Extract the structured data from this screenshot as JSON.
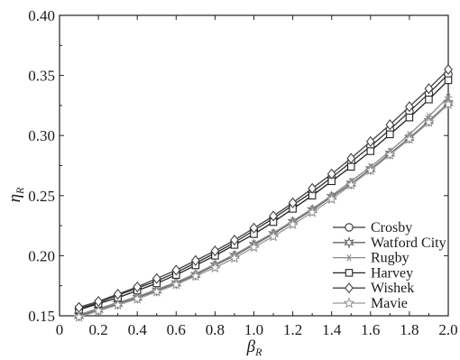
{
  "chart_data": {
    "type": "line",
    "xlabel": "β",
    "xlabel_sub": "R",
    "ylabel": "η",
    "ylabel_sub": "R",
    "xlim": [
      0,
      2.0
    ],
    "ylim": [
      0.15,
      0.4
    ],
    "x_ticks": [
      "0",
      "0.2",
      "0.4",
      "0.6",
      "0.8",
      "1.0",
      "1.2",
      "1.4",
      "1.6",
      "1.8",
      "2.0"
    ],
    "y_ticks": [
      "0.15",
      "0.20",
      "0.25",
      "0.30",
      "0.35",
      "0.40"
    ],
    "grid": false,
    "legend_position": "lower-right",
    "x": [
      0.1,
      0.2,
      0.3,
      0.4,
      0.5,
      0.6,
      0.7,
      0.8,
      0.9,
      1.0,
      1.1,
      1.2,
      1.3,
      1.4,
      1.5,
      1.6,
      1.7,
      1.8,
      1.9,
      2.0
    ],
    "series": [
      {
        "name": "Crosby",
        "marker": "circle",
        "color": "#333333",
        "values": [
          0.156,
          0.161,
          0.167,
          0.173,
          0.179,
          0.186,
          0.194,
          0.202,
          0.211,
          0.221,
          0.231,
          0.242,
          0.253,
          0.265,
          0.278,
          0.291,
          0.305,
          0.32,
          0.335,
          0.351
        ]
      },
      {
        "name": "Watford City",
        "marker": "star6",
        "color": "#666666",
        "values": [
          0.15,
          0.155,
          0.16,
          0.165,
          0.171,
          0.177,
          0.184,
          0.192,
          0.2,
          0.209,
          0.218,
          0.228,
          0.238,
          0.249,
          0.26,
          0.272,
          0.285,
          0.298,
          0.312,
          0.327
        ]
      },
      {
        "name": "Rugby",
        "marker": "asterisk",
        "color": "#8a8a8a",
        "values": [
          0.151,
          0.156,
          0.161,
          0.166,
          0.172,
          0.178,
          0.185,
          0.193,
          0.201,
          0.21,
          0.219,
          0.229,
          0.239,
          0.25,
          0.262,
          0.274,
          0.287,
          0.301,
          0.316,
          0.332
        ]
      },
      {
        "name": "Harvey",
        "marker": "square",
        "color": "#222222",
        "values": [
          0.155,
          0.16,
          0.165,
          0.171,
          0.177,
          0.184,
          0.192,
          0.2,
          0.209,
          0.218,
          0.228,
          0.239,
          0.25,
          0.262,
          0.274,
          0.287,
          0.301,
          0.315,
          0.33,
          0.346
        ]
      },
      {
        "name": "Wishek",
        "marker": "diamond",
        "color": "#444444",
        "values": [
          0.157,
          0.162,
          0.168,
          0.174,
          0.181,
          0.188,
          0.196,
          0.204,
          0.213,
          0.223,
          0.233,
          0.244,
          0.256,
          0.268,
          0.281,
          0.295,
          0.309,
          0.324,
          0.339,
          0.355
        ]
      },
      {
        "name": "Mavie",
        "marker": "star5",
        "color": "#999999",
        "values": [
          0.149,
          0.154,
          0.159,
          0.164,
          0.17,
          0.176,
          0.183,
          0.19,
          0.198,
          0.207,
          0.216,
          0.226,
          0.236,
          0.247,
          0.259,
          0.271,
          0.284,
          0.297,
          0.311,
          0.326
        ]
      }
    ]
  }
}
